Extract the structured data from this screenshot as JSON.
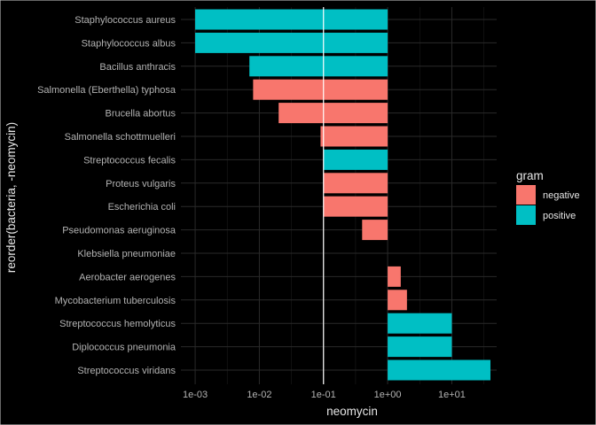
{
  "chart_data": {
    "type": "bar",
    "orientation": "horizontal",
    "xlabel": "neomycin",
    "ylabel": "reorder(bacteria, -neomycin)",
    "x_scale": "log10",
    "baseline": 1,
    "xlim": [
      0.0006,
      50
    ],
    "reference_line_x": 0.1,
    "x_ticks": [
      {
        "value": 0.001,
        "label": "1e-03"
      },
      {
        "value": 0.01,
        "label": "1e-02"
      },
      {
        "value": 0.1,
        "label": "1e-01"
      },
      {
        "value": 1,
        "label": "1e+00"
      },
      {
        "value": 10,
        "label": "1e+01"
      }
    ],
    "categories": [
      "Staphylococcus aureus",
      "Staphylococcus albus",
      "Bacillus anthracis",
      "Salmonella (Eberthella) typhosa",
      "Brucella abortus",
      "Salmonella schottmuelleri",
      "Streptococcus fecalis",
      "Proteus vulgaris",
      "Escherichia coli",
      "Pseudomonas aeruginosa",
      "Klebsiella pneumoniae",
      "Aerobacter aerogenes",
      "Mycobacterium tuberculosis",
      "Streptococcus hemolyticus",
      "Diplococcus pneumonia",
      "Streptococcus viridans"
    ],
    "values": [
      0.001,
      0.001,
      0.007,
      0.008,
      0.02,
      0.09,
      0.1,
      0.1,
      0.1,
      0.4,
      1,
      1.6,
      2,
      10,
      10,
      40
    ],
    "groups": [
      "positive",
      "positive",
      "positive",
      "negative",
      "negative",
      "negative",
      "positive",
      "negative",
      "negative",
      "negative",
      "negative",
      "negative",
      "negative",
      "positive",
      "positive",
      "positive"
    ],
    "legend": {
      "title": "gram",
      "position": "right",
      "entries": [
        {
          "name": "negative",
          "color": "#F8766D"
        },
        {
          "name": "positive",
          "color": "#00BFC4"
        }
      ]
    },
    "grid": true,
    "theme": "dark"
  }
}
